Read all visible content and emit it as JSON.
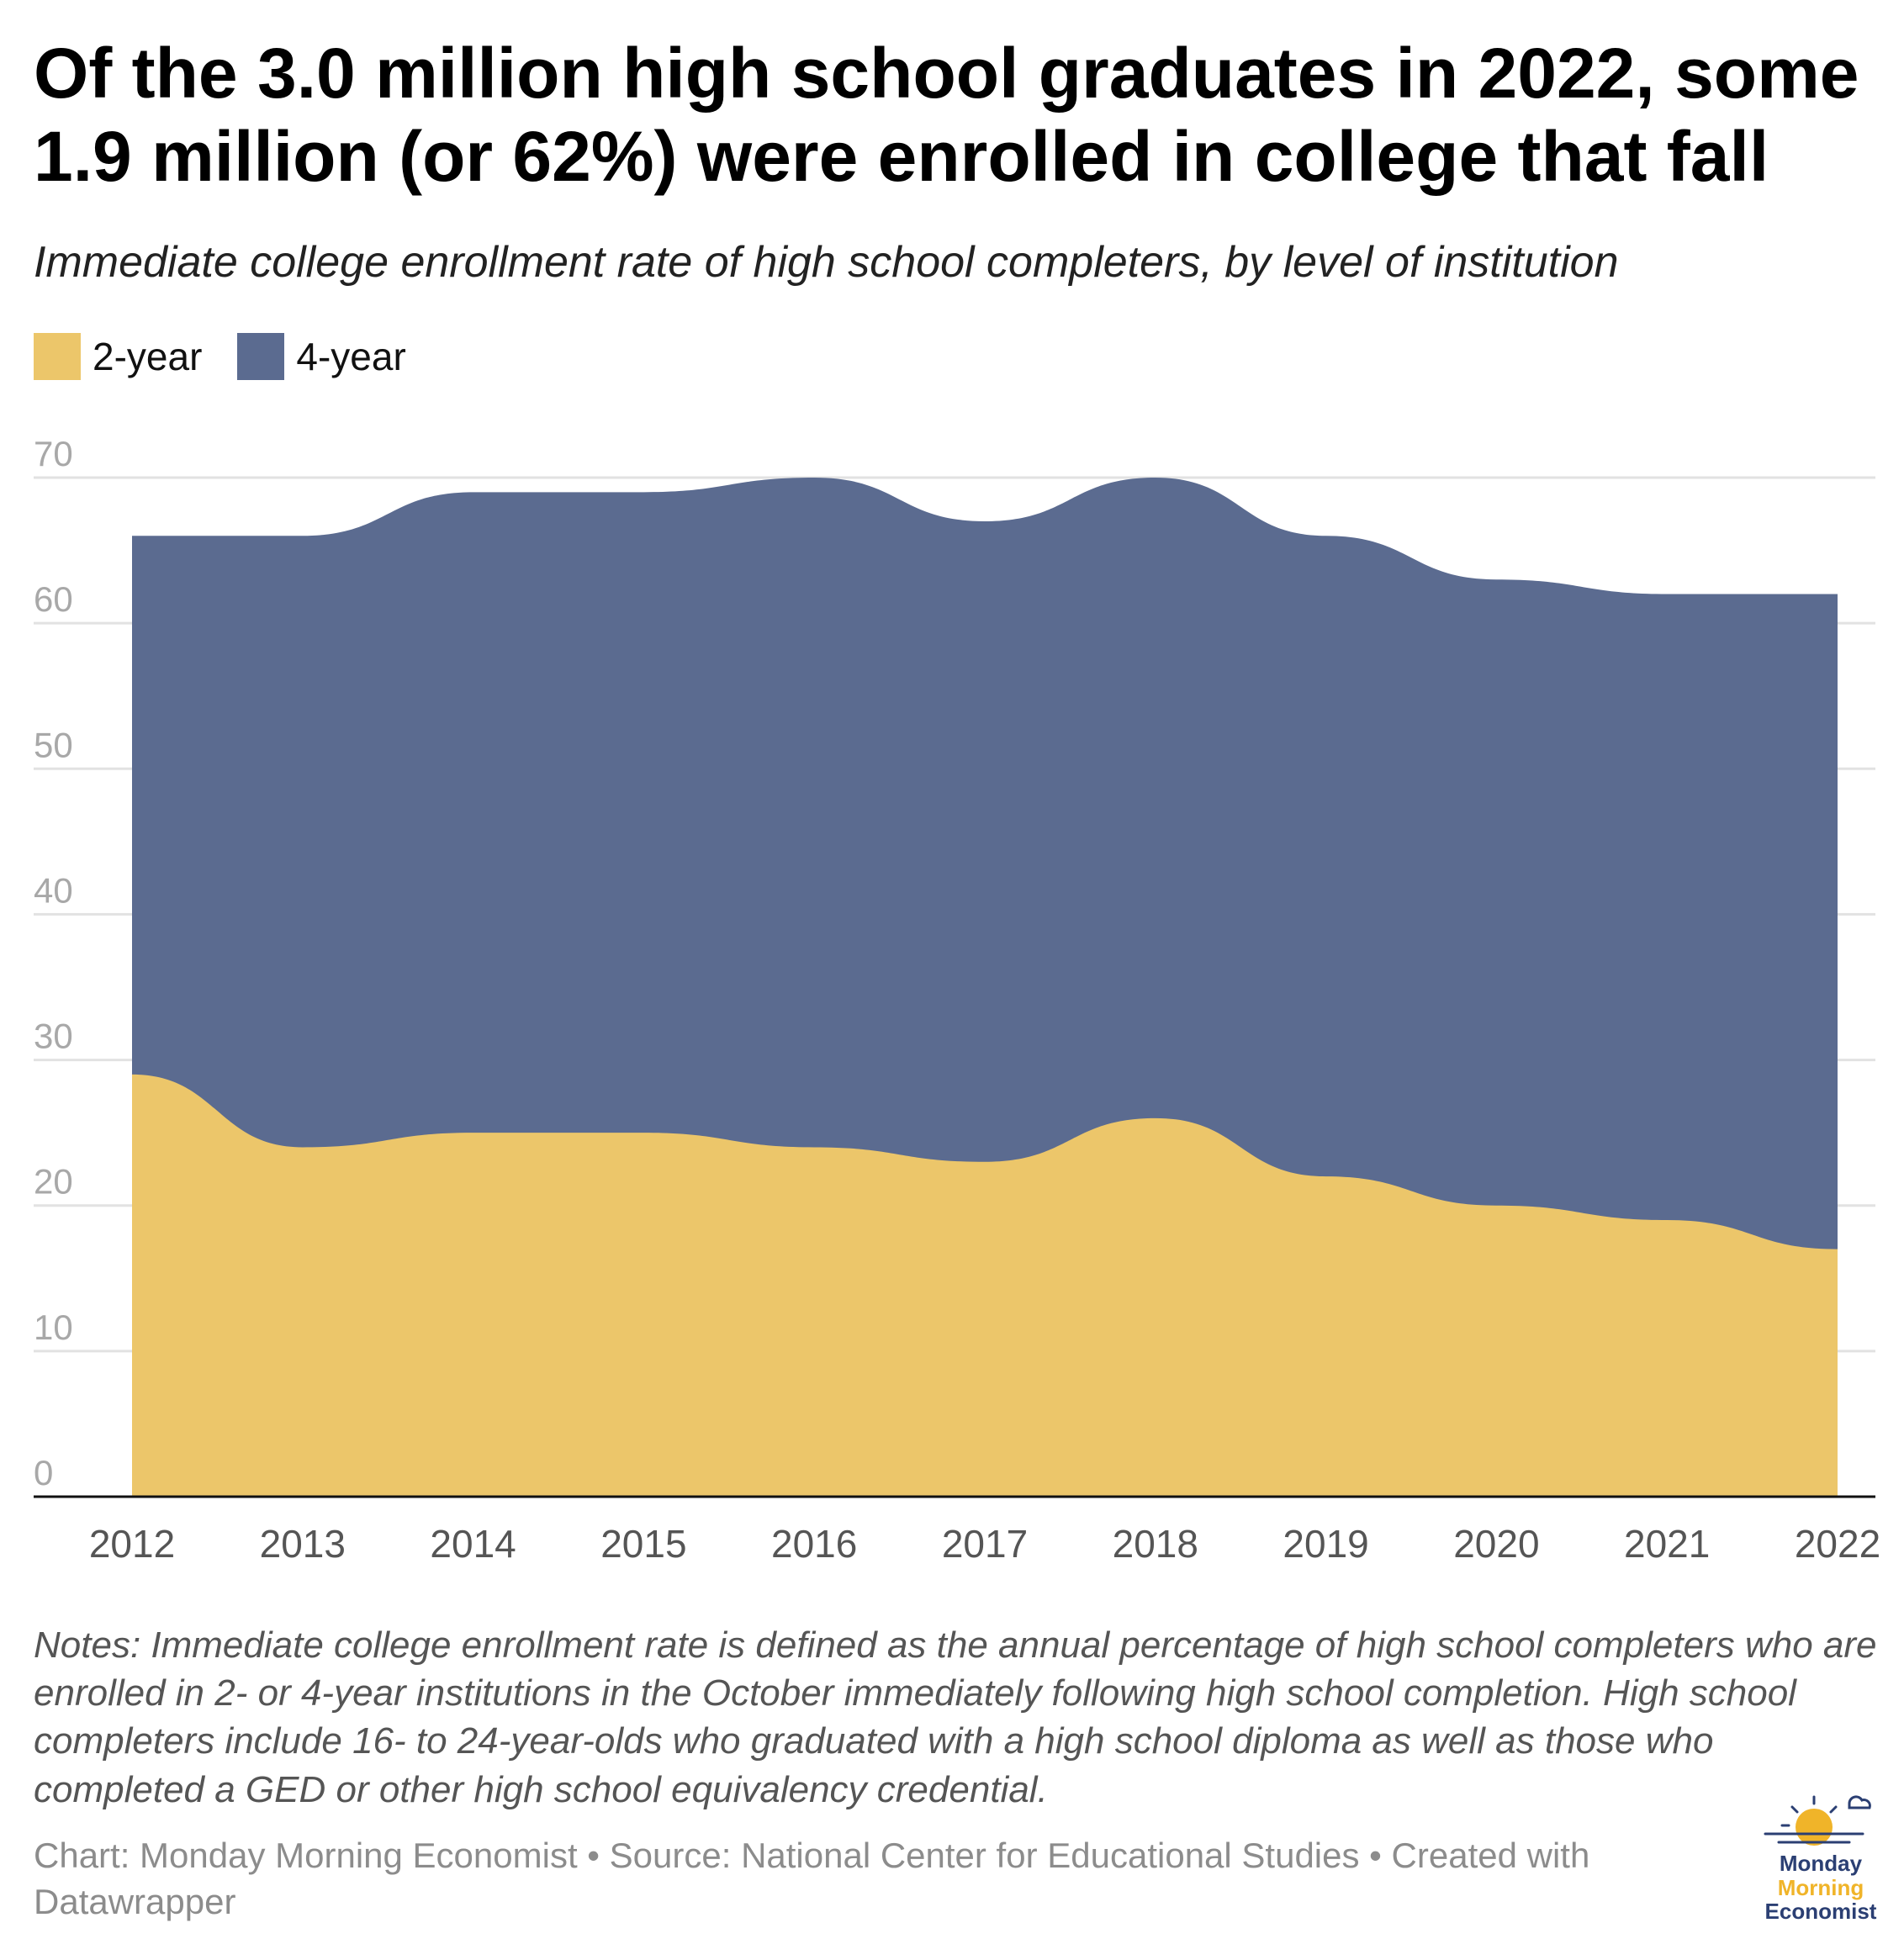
{
  "header": {
    "title": "Of the 3.0 million high school graduates in 2022, some 1.9 million (or 62%) were enrolled in college that fall",
    "subtitle": "Immediate college enrollment rate of high school completers, by level of institution"
  },
  "legend": [
    {
      "label": "2-year",
      "color": "#ecc66a"
    },
    {
      "label": "4-year",
      "color": "#5b6b90"
    }
  ],
  "chart_data": {
    "type": "area",
    "stacked": true,
    "x": [
      "2012",
      "2013",
      "2014",
      "2015",
      "2016",
      "2017",
      "2018",
      "2019",
      "2020",
      "2021",
      "2022"
    ],
    "series": [
      {
        "name": "2-year",
        "values": [
          29,
          24,
          25,
          25,
          24,
          23,
          26,
          22,
          20,
          19,
          17
        ],
        "color": "#ecc66a"
      },
      {
        "name": "4-year",
        "values": [
          37,
          42,
          44,
          44,
          46,
          44,
          44,
          44,
          43,
          43,
          45
        ],
        "color": "#5b6b90"
      }
    ],
    "totals": [
      66,
      66,
      69,
      69,
      70,
      67,
      70,
      66,
      63,
      62,
      62
    ],
    "ylim": [
      0,
      70
    ],
    "yticks": [
      0,
      10,
      20,
      30,
      40,
      50,
      60,
      70
    ],
    "grid": true,
    "legend_position": "top-left"
  },
  "footer": {
    "notes": "Notes: Immediate college enrollment rate is defined as the annual percentage of high school completers who are enrolled in 2- or 4-year institutions in the October immediately following high school completion. High school completers include 16- to 24-year-olds who graduated with a high school diploma as well as those who completed a GED or other high school equivalency credential.",
    "credit": "Chart: Monday Morning Economist • Source: National Center for Educational Studies • Created with Datawrapper"
  },
  "logo": {
    "line1": "Monday",
    "line2": "Morning",
    "line3": "Economist",
    "color_dark": "#2b3f73",
    "color_accent": "#f0b429"
  }
}
